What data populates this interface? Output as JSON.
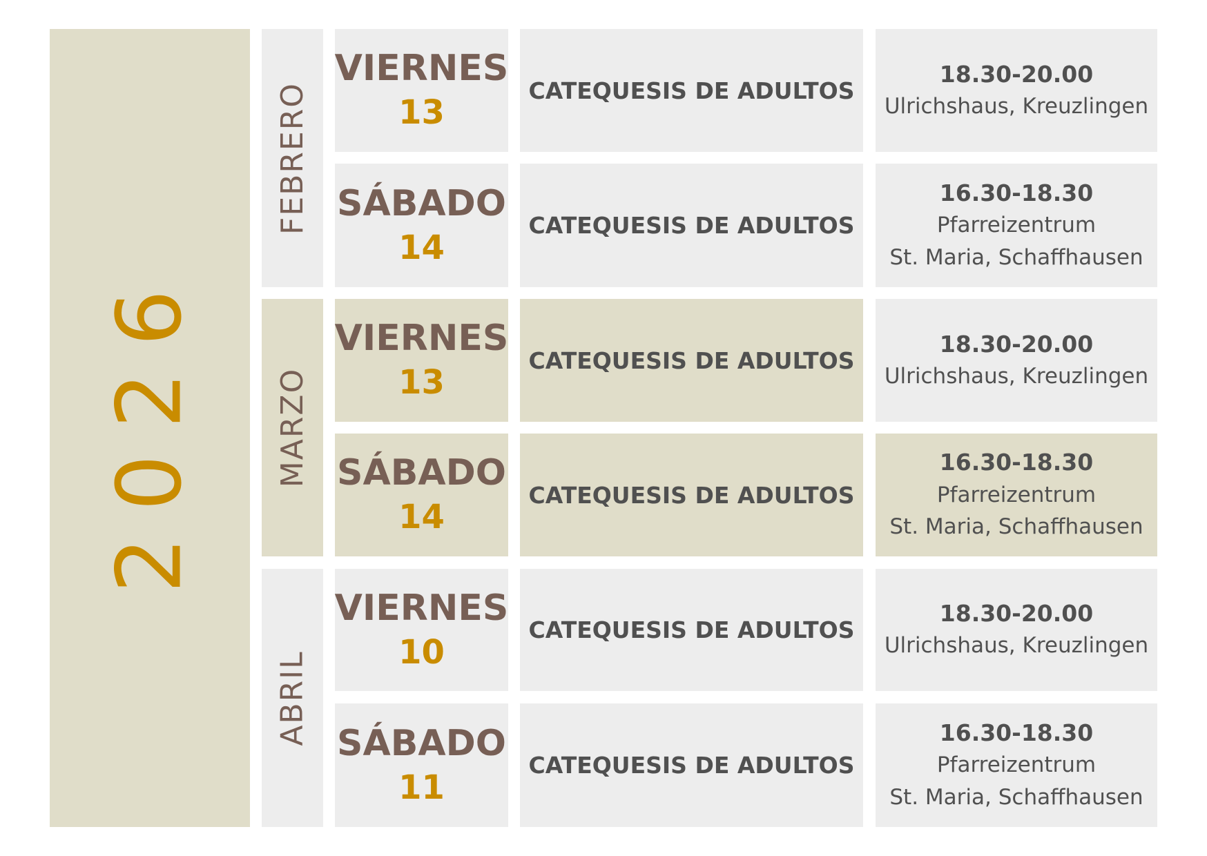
{
  "year": "2026",
  "colors": {
    "beige": "#e0ddc9",
    "gray": "#ededed",
    "brown": "#775f55",
    "gold": "#c98c00",
    "text": "#505050"
  },
  "months": [
    {
      "name": "FEBRERO",
      "highlight": false
    },
    {
      "name": "MARZO",
      "highlight": true
    },
    {
      "name": "ABRIL",
      "highlight": false
    }
  ],
  "rows": [
    {
      "day_name": "VIERNES",
      "day_num": "13",
      "event": "CATEQUESIS DE ADULTOS",
      "time": "18.30-20.00",
      "place": [
        "Ulrichshaus, Kreuzlingen"
      ]
    },
    {
      "day_name": "SÁBADO",
      "day_num": "14",
      "event": "CATEQUESIS DE ADULTOS",
      "time": "16.30-18.30",
      "place": [
        "Pfarreizentrum",
        "St. Maria, Schaffhausen"
      ]
    },
    {
      "day_name": "VIERNES",
      "day_num": "13",
      "event": "CATEQUESIS DE ADULTOS",
      "time": "18.30-20.00",
      "place": [
        "Ulrichshaus, Kreuzlingen"
      ]
    },
    {
      "day_name": "SÁBADO",
      "day_num": "14",
      "event": "CATEQUESIS DE ADULTOS",
      "time": "16.30-18.30",
      "place": [
        "Pfarreizentrum",
        "St. Maria, Schaffhausen"
      ]
    },
    {
      "day_name": "VIERNES",
      "day_num": "10",
      "event": "CATEQUESIS DE ADULTOS",
      "time": "18.30-20.00",
      "place": [
        "Ulrichshaus, Kreuzlingen"
      ]
    },
    {
      "day_name": "SÁBADO",
      "day_num": "11",
      "event": "CATEQUESIS DE ADULTOS",
      "time": "16.30-18.30",
      "place": [
        "Pfarreizentrum",
        "St. Maria, Schaffhausen"
      ]
    }
  ]
}
